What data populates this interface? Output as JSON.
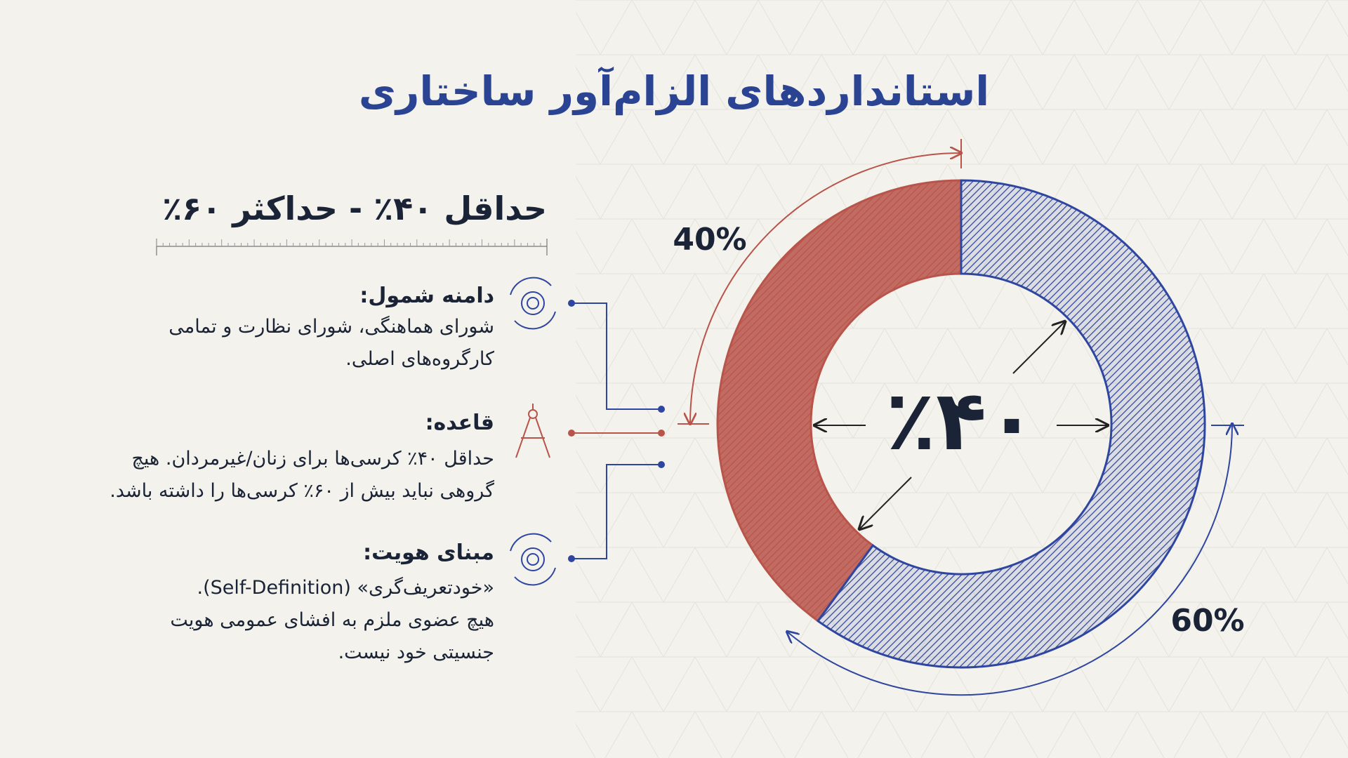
{
  "header": {
    "title": "استانداردهای الزام‌آور ساختاری"
  },
  "range_label": "حداقل ۴۰٪ - حداکثر ۶۰٪",
  "items": [
    {
      "heading": "دامنه شمول:",
      "lines": [
        "شورای هماهنگی، شورای نظارت و تمامی",
        "کارگروه‌های اصلی."
      ]
    },
    {
      "heading": "قاعده:",
      "lines": [
        "حداقل ۴۰٪ کرسی‌ها برای زنان/غیرمردان. هیچ",
        "گروهی نباید بیش از ۶۰٪ کرسی‌ها را داشته باشد."
      ]
    },
    {
      "heading": "مبنای هویت:",
      "lines": [
        "«خودتعریف‌گری» (Self-Definition).",
        "هیچ عضوی ملزم به افشای عمومی هویت",
        "جنسیتی خود نیست."
      ]
    }
  ],
  "chart_data": {
    "type": "donut",
    "values": [
      40,
      60
    ],
    "value_labels": [
      "40%",
      "60%"
    ],
    "colors": [
      "#b9544a",
      "#2f46a0"
    ],
    "center_label": "٪۴۰"
  }
}
